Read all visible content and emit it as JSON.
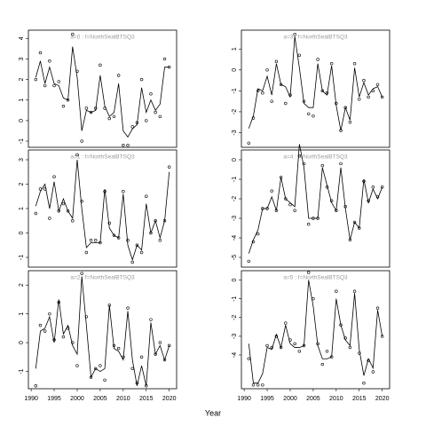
{
  "xlabel": "Year",
  "chart_data": [
    {
      "type": "line",
      "title": "a=0 : f=NorthSealBTSQ3",
      "x": [
        1991,
        1992,
        1993,
        1994,
        1995,
        1996,
        1997,
        1998,
        1999,
        2000,
        2001,
        2002,
        2003,
        2004,
        2005,
        2006,
        2007,
        2008,
        2009,
        2010,
        2011,
        2012,
        2013,
        2014,
        2015,
        2016,
        2017,
        2018,
        2019,
        2020
      ],
      "xlim": [
        1989.4,
        2021.6
      ],
      "ylim": [
        -1.3,
        4.4
      ],
      "yticks": [
        -1,
        0,
        1,
        2,
        3,
        4
      ],
      "series": [
        {
          "style": "line",
          "color": "#000000",
          "values": [
            2.1,
            2.9,
            1.8,
            2.6,
            1.8,
            1.7,
            1.1,
            1.0,
            3.6,
            2.1,
            -0.5,
            0.5,
            0.4,
            0.5,
            2.2,
            0.7,
            0.2,
            0.4,
            1.8,
            -0.5,
            -0.8,
            -0.4,
            -0.2,
            1.6,
            0.4,
            1.0,
            0.5,
            0.8,
            2.6,
            2.6
          ]
        },
        {
          "style": "points",
          "color": "#000000",
          "values": [
            2.0,
            3.3,
            1.7,
            2.9,
            1.7,
            1.9,
            0.7,
            1.0,
            4.2,
            2.4,
            -1.0,
            0.6,
            0.4,
            0.6,
            2.7,
            0.6,
            0.1,
            0.2,
            2.2,
            -1.2,
            -1.2,
            -0.3,
            -0.1,
            2.0,
            0.0,
            1.3,
            0.4,
            0.2,
            3.0,
            2.6
          ]
        }
      ]
    },
    {
      "type": "line",
      "title": "a=3 : f=NorthSealBTSQ3",
      "x": [
        1991,
        1992,
        1993,
        1994,
        1995,
        1996,
        1997,
        1998,
        1999,
        2000,
        2001,
        2002,
        2003,
        2004,
        2005,
        2006,
        2007,
        2008,
        2009,
        2010,
        2011,
        2012,
        2013,
        2014,
        2015,
        2016,
        2017,
        2018,
        2019,
        2020
      ],
      "xlim": [
        1989.4,
        2021.6
      ],
      "ylim": [
        -3.7,
        1.9
      ],
      "yticks": [
        -3,
        -2,
        -1,
        0,
        1
      ],
      "series": [
        {
          "style": "line",
          "color": "#000000",
          "values": [
            -2.8,
            -2.2,
            -0.9,
            -1.0,
            -0.3,
            -1.2,
            0.3,
            -0.7,
            -0.8,
            -1.3,
            1.6,
            0.1,
            -1.6,
            -1.8,
            -1.8,
            0.3,
            -1.0,
            -1.2,
            0.2,
            -1.7,
            -2.9,
            -1.8,
            -2.4,
            0.1,
            -1.3,
            -0.6,
            -1.2,
            -0.9,
            -0.8,
            -1.3
          ]
        },
        {
          "style": "points",
          "color": "#000000",
          "values": [
            -3.5,
            -2.3,
            -1.0,
            -1.1,
            0.0,
            -1.5,
            0.4,
            -0.7,
            -1.6,
            -1.2,
            1.7,
            0.7,
            -1.5,
            -2.1,
            -2.2,
            0.5,
            -1.0,
            -1.1,
            0.3,
            -1.6,
            -2.9,
            -1.8,
            -2.5,
            0.3,
            -1.4,
            -0.5,
            -1.3,
            -1.0,
            -0.7,
            -1.3
          ]
        }
      ]
    },
    {
      "type": "line",
      "title": "a=1 : f=NorthSealBTSQ3",
      "x": [
        1991,
        1992,
        1993,
        1994,
        1995,
        1996,
        1997,
        1998,
        1999,
        2000,
        2001,
        2002,
        2003,
        2004,
        2005,
        2006,
        2007,
        2008,
        2009,
        2010,
        2011,
        2012,
        2013,
        2014,
        2015,
        2016,
        2017,
        2018,
        2019,
        2020
      ],
      "xlim": [
        1989.4,
        2021.6
      ],
      "ylim": [
        -1.4,
        3.4
      ],
      "yticks": [
        -1,
        0,
        1,
        2,
        3
      ],
      "series": [
        {
          "style": "line",
          "color": "#000000",
          "values": [
            1.1,
            1.7,
            2.0,
            1.0,
            2.1,
            0.9,
            1.4,
            0.9,
            0.6,
            3.0,
            1.0,
            -0.6,
            -0.4,
            -0.4,
            -0.4,
            1.8,
            0.2,
            -0.1,
            -0.2,
            1.6,
            -0.5,
            -1.1,
            -0.5,
            -0.7,
            1.2,
            0.0,
            0.5,
            -0.2,
            0.5,
            2.5
          ]
        },
        {
          "style": "points",
          "color": "#000000",
          "values": [
            0.8,
            1.8,
            1.8,
            0.6,
            2.3,
            0.9,
            1.2,
            0.9,
            0.5,
            3.2,
            1.3,
            -0.8,
            -0.3,
            -0.3,
            -0.4,
            1.7,
            0.4,
            -0.1,
            -0.2,
            1.7,
            -0.3,
            -1.2,
            -0.5,
            -0.8,
            1.5,
            0.0,
            0.5,
            -0.3,
            0.5,
            2.7
          ]
        }
      ]
    },
    {
      "type": "line",
      "title": "a=4 : f=NorthSealBTSQ3",
      "x": [
        1991,
        1992,
        1993,
        1994,
        1995,
        1996,
        1997,
        1998,
        1999,
        2000,
        2001,
        2002,
        2003,
        2004,
        2005,
        2006,
        2007,
        2008,
        2009,
        2010,
        2011,
        2012,
        2013,
        2014,
        2015,
        2016,
        2017,
        2018,
        2019,
        2020
      ],
      "xlim": [
        1989.4,
        2021.6
      ],
      "ylim": [
        -5.5,
        0.5
      ],
      "yticks": [
        -5,
        -4,
        -3,
        -2,
        -1,
        0
      ],
      "series": [
        {
          "style": "line",
          "color": "#000000",
          "values": [
            -4.8,
            -4.1,
            -3.6,
            -2.5,
            -2.5,
            -1.9,
            -2.6,
            -0.9,
            -2.0,
            -2.2,
            -2.4,
            0.8,
            -0.4,
            -3.0,
            -3.0,
            -3.0,
            -0.4,
            -1.3,
            -2.2,
            -2.6,
            -0.4,
            -2.5,
            -4.1,
            -3.2,
            -3.5,
            -1.0,
            -2.2,
            -1.5,
            -2.0,
            -1.4
          ]
        },
        {
          "style": "points",
          "color": "#000000",
          "values": [
            -5.2,
            -4.2,
            -3.8,
            -2.5,
            -2.5,
            -1.6,
            -2.6,
            -0.9,
            -2.0,
            -2.3,
            -2.6,
            0.2,
            -0.2,
            -3.3,
            -3.0,
            -3.0,
            -0.3,
            -1.4,
            -2.1,
            -2.6,
            -0.2,
            -2.4,
            -4.1,
            -3.2,
            -3.5,
            -1.1,
            -2.1,
            -1.4,
            -1.9,
            -1.4
          ]
        }
      ]
    },
    {
      "type": "line",
      "title": "a=2 : f=NorthSealBTSQ3",
      "x": [
        1991,
        1992,
        1993,
        1994,
        1995,
        1996,
        1997,
        1998,
        1999,
        2000,
        2001,
        2002,
        2003,
        2004,
        2005,
        2006,
        2007,
        2008,
        2009,
        2010,
        2011,
        2012,
        2013,
        2014,
        2015,
        2016,
        2017,
        2018,
        2019,
        2020
      ],
      "xlim": [
        1989.4,
        2021.6
      ],
      "xticks": [
        1990,
        1995,
        2000,
        2005,
        2010,
        2015,
        2020
      ],
      "ylim": [
        -1.6,
        2.5
      ],
      "yticks": [
        -1,
        0,
        1,
        2
      ],
      "series": [
        {
          "style": "line",
          "color": "#000000",
          "values": [
            -0.9,
            0.4,
            0.5,
            0.9,
            0.0,
            1.5,
            0.3,
            0.6,
            -0.1,
            -0.4,
            2.3,
            0.6,
            -1.2,
            -0.9,
            -1.0,
            -0.9,
            1.3,
            -0.2,
            -0.3,
            -0.6,
            1.1,
            -0.6,
            -1.5,
            -0.8,
            -1.5,
            0.7,
            -0.4,
            -0.1,
            -0.6,
            -0.1
          ]
        },
        {
          "style": "points",
          "color": "#000000",
          "values": [
            -1.5,
            0.6,
            0.4,
            1.0,
            0.1,
            1.4,
            0.2,
            0.5,
            0.0,
            -0.8,
            2.4,
            0.9,
            -1.2,
            -0.9,
            -0.8,
            -1.3,
            1.3,
            -0.1,
            -0.2,
            -0.5,
            1.2,
            -0.9,
            -1.4,
            -0.5,
            -1.5,
            0.8,
            -0.4,
            0.0,
            -0.6,
            -0.1
          ]
        }
      ]
    },
    {
      "type": "line",
      "title": "a=5 : f=NorthSealBTSQ3",
      "x": [
        1991,
        1992,
        1993,
        1994,
        1995,
        1996,
        1997,
        1998,
        1999,
        2000,
        2001,
        2002,
        2003,
        2004,
        2005,
        2006,
        2007,
        2008,
        2009,
        2010,
        2011,
        2012,
        2013,
        2014,
        2015,
        2016,
        2017,
        2018,
        2019,
        2020
      ],
      "xlim": [
        1989.4,
        2021.6
      ],
      "xticks": [
        1990,
        1995,
        2000,
        2005,
        2010,
        2015,
        2020
      ],
      "ylim": [
        -5.8,
        0.5
      ],
      "yticks": [
        -4,
        -3,
        -2,
        -1,
        0
      ],
      "series": [
        {
          "style": "line",
          "color": "#000000",
          "values": [
            -3.4,
            -5.5,
            -5.5,
            -5.0,
            -3.6,
            -3.7,
            -2.9,
            -3.6,
            -2.4,
            -3.4,
            -3.6,
            -3.6,
            -3.5,
            0.0,
            -1.4,
            -3.5,
            -4.2,
            -4.2,
            -4.1,
            -1.0,
            -2.4,
            -3.2,
            -3.5,
            -0.7,
            -3.7,
            -5.1,
            -4.2,
            -4.7,
            -1.6,
            -3.0
          ]
        },
        {
          "style": "points",
          "color": "#000000",
          "values": [
            -4.2,
            -5.6,
            -5.6,
            -5.6,
            -3.5,
            -3.6,
            -3.0,
            -3.6,
            -2.3,
            -3.2,
            -3.4,
            -3.8,
            -3.5,
            0.4,
            -1.0,
            -3.4,
            -4.5,
            -3.8,
            -4.1,
            -0.6,
            -2.4,
            -3.1,
            -3.6,
            -0.6,
            -3.9,
            -5.5,
            -4.3,
            -4.9,
            -1.5,
            -3.0
          ]
        }
      ]
    }
  ]
}
